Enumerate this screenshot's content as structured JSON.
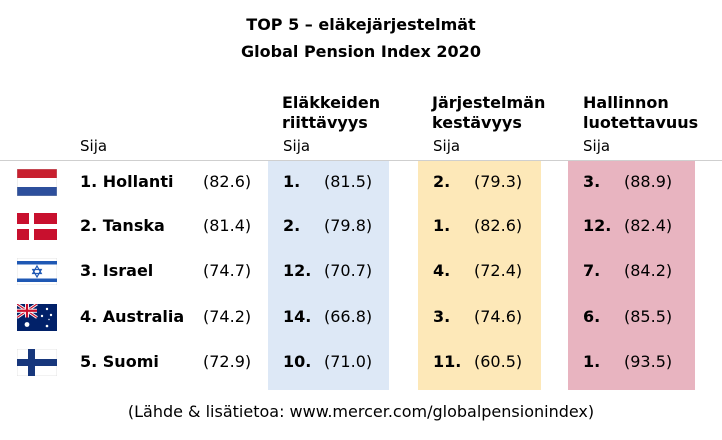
{
  "title": "TOP 5 – eläkejärjestelmät",
  "subtitle": "Global Pension Index 2020",
  "columns": {
    "overall": {
      "sub": "Sija"
    },
    "adequacy": {
      "header_line1": "Eläkkeiden",
      "header_line2": "riittävyys",
      "sub": "Sija"
    },
    "sustainability": {
      "header_line1": "Järjestelmän",
      "header_line2": "kestävyys",
      "sub": "Sija"
    },
    "integrity": {
      "header_line1": "Hallinnon",
      "header_line2": "luotettavuus",
      "sub": "Sija"
    }
  },
  "colors": {
    "adequacy_band": "#dde8f6",
    "sustainability_band": "#fde8b8",
    "integrity_band": "#e8b4c0"
  },
  "chart_data": {
    "type": "table",
    "rows": [
      {
        "country": "1. Hollanti",
        "flag": "netherlands-flag",
        "score": "(82.6)",
        "adequacy_rank": "1.",
        "adequacy_score": "(81.5)",
        "sustainability_rank": "2.",
        "sustainability_score": "(79.3)",
        "integrity_rank": "3.",
        "integrity_score": "(88.9)"
      },
      {
        "country": "2. Tanska",
        "flag": "denmark-flag",
        "score": "(81.4)",
        "adequacy_rank": "2.",
        "adequacy_score": "(79.8)",
        "sustainability_rank": "1.",
        "sustainability_score": "(82.6)",
        "integrity_rank": "12.",
        "integrity_score": "(82.4)"
      },
      {
        "country": "3. Israel",
        "flag": "israel-flag",
        "score": "(74.7)",
        "adequacy_rank": "12.",
        "adequacy_score": "(70.7)",
        "sustainability_rank": "4.",
        "sustainability_score": "(72.4)",
        "integrity_rank": "7.",
        "integrity_score": "(84.2)"
      },
      {
        "country": "4. Australia",
        "flag": "australia-flag",
        "score": "(74.2)",
        "adequacy_rank": "14.",
        "adequacy_score": "(66.8)",
        "sustainability_rank": "3.",
        "sustainability_score": "(74.6)",
        "integrity_rank": "6.",
        "integrity_score": "(85.5)"
      },
      {
        "country": "5. Suomi",
        "flag": "finland-flag",
        "score": "(72.9)",
        "adequacy_rank": "10.",
        "adequacy_score": "(71.0)",
        "sustainability_rank": "11.",
        "sustainability_score": "(60.5)",
        "integrity_rank": "1.",
        "integrity_score": "(93.5)"
      }
    ]
  },
  "source": "(Lähde & lisätietoa: www.mercer.com/globalpensionindex)"
}
